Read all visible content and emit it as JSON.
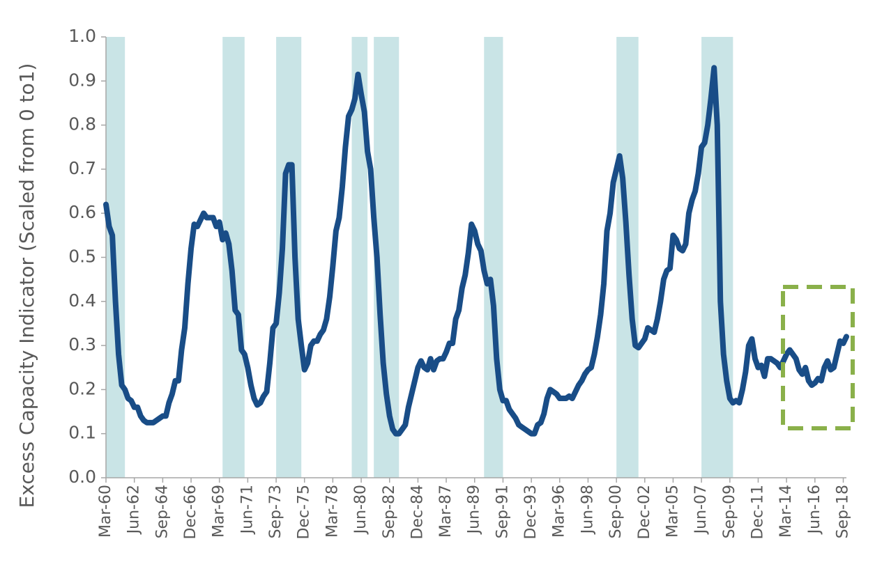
{
  "chart_data": {
    "type": "line",
    "y_label": "Excess Capacity Indicator (Scaled from 0 to1)",
    "ylim": [
      0,
      1
    ],
    "yticks": [
      {
        "value": 0,
        "label": "0.0"
      },
      0.1,
      0.2,
      0.3,
      0.4,
      0.5,
      0.6,
      0.7,
      0.8,
      0.9,
      {
        "value": 1,
        "label": "1.0"
      }
    ],
    "xlim": [
      "Mar-60",
      "Dec-18"
    ],
    "xticks": [
      "Mar-60",
      "Jun-62",
      "Sep-64",
      "Dec-66",
      "Mar-69",
      "Jun-71",
      "Sep-73",
      "Dec-75",
      "Mar-78",
      "Jun-80",
      "Sep-82",
      "Dec-84",
      "Mar-87",
      "Jun-89",
      "Sep-91",
      "Dec-93",
      "Mar-96",
      "Jun-98",
      "Sep-00",
      "Dec-02",
      "Mar-05",
      "Jun-07",
      "Sep-09",
      "Dec-11",
      "Mar-14",
      "Jun-16",
      "Sep-18"
    ],
    "shaded_periods": [
      [
        "Mar-60",
        "Sep-61"
      ],
      [
        "Jun-69",
        "Mar-71"
      ],
      [
        "Sep-73",
        "Sep-75"
      ],
      [
        "Sep-79",
        "Dec-80"
      ],
      [
        "Jun-81",
        "Jun-83"
      ],
      [
        "Mar-90",
        "Sep-91"
      ],
      [
        "Sep-00",
        "Jun-02"
      ],
      [
        "Jun-07",
        "Dec-09"
      ]
    ],
    "shade_color": "#c9e4e6",
    "color": "#194d87",
    "x": [
      "Mar-60",
      "Jun-60",
      "Sep-60",
      "Dec-60",
      "Mar-61",
      "Jun-61",
      "Sep-61",
      "Dec-61",
      "Mar-62",
      "Jun-62",
      "Sep-62",
      "Dec-62",
      "Mar-63",
      "Jun-63",
      "Sep-63",
      "Dec-63",
      "Mar-64",
      "Jun-64",
      "Sep-64",
      "Dec-64",
      "Mar-65",
      "Jun-65",
      "Sep-65",
      "Dec-65",
      "Mar-66",
      "Jun-66",
      "Sep-66",
      "Dec-66",
      "Mar-67",
      "Jun-67",
      "Sep-67",
      "Dec-67",
      "Mar-68",
      "Jun-68",
      "Sep-68",
      "Dec-68",
      "Mar-69",
      "Jun-69",
      "Sep-69",
      "Dec-69",
      "Mar-70",
      "Jun-70",
      "Sep-70",
      "Dec-70",
      "Mar-71",
      "Jun-71",
      "Sep-71",
      "Dec-71",
      "Mar-72",
      "Jun-72",
      "Sep-72",
      "Dec-72",
      "Mar-73",
      "Jun-73",
      "Sep-73",
      "Dec-73",
      "Mar-74",
      "Jun-74",
      "Sep-74",
      "Dec-74",
      "Mar-75",
      "Jun-75",
      "Sep-75",
      "Dec-75",
      "Mar-76",
      "Jun-76",
      "Sep-76",
      "Dec-76",
      "Mar-77",
      "Jun-77",
      "Sep-77",
      "Dec-77",
      "Mar-78",
      "Jun-78",
      "Sep-78",
      "Dec-78",
      "Mar-79",
      "Jun-79",
      "Sep-79",
      "Dec-79",
      "Mar-80",
      "Jun-80",
      "Sep-80",
      "Dec-80",
      "Mar-81",
      "Jun-81",
      "Sep-81",
      "Dec-81",
      "Mar-82",
      "Jun-82",
      "Sep-82",
      "Dec-82",
      "Mar-83",
      "Jun-83",
      "Sep-83",
      "Dec-83",
      "Mar-84",
      "Jun-84",
      "Sep-84",
      "Dec-84",
      "Mar-85",
      "Jun-85",
      "Sep-85",
      "Dec-85",
      "Mar-86",
      "Jun-86",
      "Sep-86",
      "Dec-86",
      "Mar-87",
      "Jun-87",
      "Sep-87",
      "Dec-87",
      "Mar-88",
      "Jun-88",
      "Sep-88",
      "Dec-88",
      "Mar-89",
      "Jun-89",
      "Sep-89",
      "Dec-89",
      "Mar-90",
      "Jun-90",
      "Sep-90",
      "Dec-90",
      "Mar-91",
      "Jun-91",
      "Sep-91",
      "Dec-91",
      "Mar-92",
      "Jun-92",
      "Sep-92",
      "Dec-92",
      "Mar-93",
      "Jun-93",
      "Sep-93",
      "Dec-93",
      "Mar-94",
      "Jun-94",
      "Sep-94",
      "Dec-94",
      "Mar-95",
      "Jun-95",
      "Sep-95",
      "Dec-95",
      "Mar-96",
      "Jun-96",
      "Sep-96",
      "Dec-96",
      "Mar-97",
      "Jun-97",
      "Sep-97",
      "Dec-97",
      "Mar-98",
      "Jun-98",
      "Sep-98",
      "Dec-98",
      "Mar-99",
      "Jun-99",
      "Sep-99",
      "Dec-99",
      "Mar-00",
      "Jun-00",
      "Sep-00",
      "Dec-00",
      "Mar-01",
      "Jun-01",
      "Sep-01",
      "Dec-01",
      "Mar-02",
      "Jun-02",
      "Sep-02",
      "Dec-02",
      "Mar-03",
      "Jun-03",
      "Sep-03",
      "Dec-03",
      "Mar-04",
      "Jun-04",
      "Sep-04",
      "Dec-04",
      "Mar-05",
      "Jun-05",
      "Sep-05",
      "Dec-05",
      "Mar-06",
      "Jun-06",
      "Sep-06",
      "Dec-06",
      "Mar-07",
      "Jun-07",
      "Sep-07",
      "Dec-07",
      "Mar-08",
      "Jun-08",
      "Sep-08",
      "Dec-08",
      "Mar-09",
      "Jun-09",
      "Sep-09",
      "Dec-09",
      "Mar-10",
      "Jun-10",
      "Sep-10",
      "Dec-10",
      "Mar-11",
      "Jun-11",
      "Sep-11",
      "Dec-11",
      "Mar-12",
      "Jun-12",
      "Sep-12",
      "Dec-12",
      "Mar-13",
      "Jun-13",
      "Sep-13",
      "Dec-13",
      "Mar-14",
      "Jun-14",
      "Sep-14",
      "Dec-14",
      "Mar-15",
      "Jun-15",
      "Sep-15",
      "Dec-15",
      "Mar-16",
      "Jun-16",
      "Sep-16",
      "Dec-16",
      "Mar-17",
      "Jun-17",
      "Sep-17",
      "Dec-17",
      "Mar-18",
      "Jun-18",
      "Sep-18",
      "Dec-18"
    ],
    "values": [
      0.62,
      0.57,
      0.55,
      0.4,
      0.28,
      0.21,
      0.2,
      0.18,
      0.175,
      0.16,
      0.16,
      0.14,
      0.13,
      0.125,
      0.125,
      0.125,
      0.13,
      0.135,
      0.14,
      0.14,
      0.17,
      0.19,
      0.22,
      0.22,
      0.29,
      0.34,
      0.44,
      0.52,
      0.575,
      0.57,
      0.585,
      0.6,
      0.59,
      0.59,
      0.59,
      0.57,
      0.58,
      0.54,
      0.555,
      0.53,
      0.47,
      0.38,
      0.37,
      0.29,
      0.28,
      0.25,
      0.21,
      0.18,
      0.165,
      0.17,
      0.185,
      0.195,
      0.26,
      0.34,
      0.35,
      0.42,
      0.52,
      0.69,
      0.71,
      0.71,
      0.5,
      0.36,
      0.3,
      0.245,
      0.26,
      0.3,
      0.31,
      0.31,
      0.325,
      0.335,
      0.36,
      0.41,
      0.48,
      0.56,
      0.59,
      0.66,
      0.75,
      0.82,
      0.835,
      0.86,
      0.915,
      0.87,
      0.83,
      0.74,
      0.7,
      0.59,
      0.5,
      0.37,
      0.26,
      0.19,
      0.14,
      0.11,
      0.1,
      0.1,
      0.11,
      0.12,
      0.16,
      0.19,
      0.22,
      0.25,
      0.265,
      0.25,
      0.245,
      0.27,
      0.245,
      0.265,
      0.27,
      0.27,
      0.285,
      0.305,
      0.305,
      0.36,
      0.38,
      0.43,
      0.46,
      0.51,
      0.575,
      0.56,
      0.53,
      0.515,
      0.47,
      0.44,
      0.45,
      0.39,
      0.27,
      0.2,
      0.175,
      0.175,
      0.155,
      0.145,
      0.135,
      0.12,
      0.115,
      0.11,
      0.105,
      0.1,
      0.1,
      0.12,
      0.125,
      0.145,
      0.18,
      0.2,
      0.195,
      0.19,
      0.18,
      0.18,
      0.18,
      0.185,
      0.18,
      0.195,
      0.21,
      0.22,
      0.235,
      0.245,
      0.25,
      0.28,
      0.32,
      0.37,
      0.44,
      0.56,
      0.6,
      0.67,
      0.7,
      0.73,
      0.68,
      0.58,
      0.46,
      0.36,
      0.3,
      0.295,
      0.305,
      0.315,
      0.34,
      0.335,
      0.33,
      0.36,
      0.4,
      0.45,
      0.47,
      0.475,
      0.55,
      0.54,
      0.52,
      0.515,
      0.53,
      0.6,
      0.63,
      0.65,
      0.69,
      0.75,
      0.76,
      0.8,
      0.86,
      0.93,
      0.8,
      0.4,
      0.28,
      0.22,
      0.18,
      0.17,
      0.175,
      0.17,
      0.2,
      0.24,
      0.3,
      0.315,
      0.27,
      0.25,
      0.255,
      0.23,
      0.27,
      0.27,
      0.265,
      0.26,
      0.25,
      0.265,
      0.28,
      0.29,
      0.28,
      0.27,
      0.245,
      0.235,
      0.25,
      0.22,
      0.21,
      0.215,
      0.225,
      0.22,
      0.25,
      0.265,
      0.245,
      0.25,
      0.28,
      0.31,
      0.305,
      0.32
    ]
  }
}
